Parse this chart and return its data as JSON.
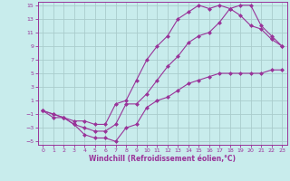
{
  "title": "",
  "xlabel": "Windchill (Refroidissement éolien,°C)",
  "bg_color": "#c8ecec",
  "line_color": "#993399",
  "grid_color": "#aacccc",
  "xlim": [
    -0.5,
    23.5
  ],
  "ylim": [
    -5.5,
    15.5
  ],
  "yticks": [
    -5,
    -3,
    -1,
    1,
    3,
    5,
    7,
    9,
    11,
    13,
    15
  ],
  "xticks": [
    0,
    1,
    2,
    3,
    4,
    5,
    6,
    7,
    8,
    9,
    10,
    11,
    12,
    13,
    14,
    15,
    16,
    17,
    18,
    19,
    20,
    21,
    22,
    23
  ],
  "line1_x": [
    0,
    1,
    2,
    3,
    4,
    5,
    6,
    7,
    8,
    9,
    10,
    11,
    12,
    13,
    14,
    15,
    16,
    17,
    18,
    19,
    20,
    21,
    22,
    23
  ],
  "line1_y": [
    -0.5,
    -1.5,
    -1.5,
    -2.5,
    -4.0,
    -4.5,
    -4.5,
    -5.0,
    -3.0,
    -2.5,
    0.0,
    1.0,
    1.5,
    2.5,
    3.5,
    4.0,
    4.5,
    5.0,
    5.0,
    5.0,
    5.0,
    5.0,
    5.5,
    5.5
  ],
  "line2_x": [
    0,
    1,
    2,
    3,
    4,
    5,
    6,
    7,
    8,
    9,
    10,
    11,
    12,
    13,
    14,
    15,
    16,
    17,
    18,
    19,
    20,
    21,
    22,
    23
  ],
  "line2_y": [
    -0.5,
    -1.0,
    -1.5,
    -2.0,
    -2.0,
    -2.5,
    -2.5,
    0.5,
    1.0,
    4.0,
    7.0,
    9.0,
    10.5,
    13.0,
    14.0,
    15.0,
    14.5,
    15.0,
    14.5,
    13.5,
    12.0,
    11.5,
    10.0,
    9.0
  ],
  "line3_x": [
    0,
    1,
    2,
    3,
    4,
    5,
    6,
    7,
    8,
    9,
    10,
    11,
    12,
    13,
    14,
    15,
    16,
    17,
    18,
    19,
    20,
    21,
    22,
    23
  ],
  "line3_y": [
    -0.5,
    -1.0,
    -1.5,
    -2.5,
    -3.0,
    -3.5,
    -3.5,
    -2.5,
    0.5,
    0.5,
    2.0,
    4.0,
    6.0,
    7.5,
    9.5,
    10.5,
    11.0,
    12.5,
    14.5,
    15.0,
    15.0,
    12.0,
    10.5,
    9.0
  ]
}
